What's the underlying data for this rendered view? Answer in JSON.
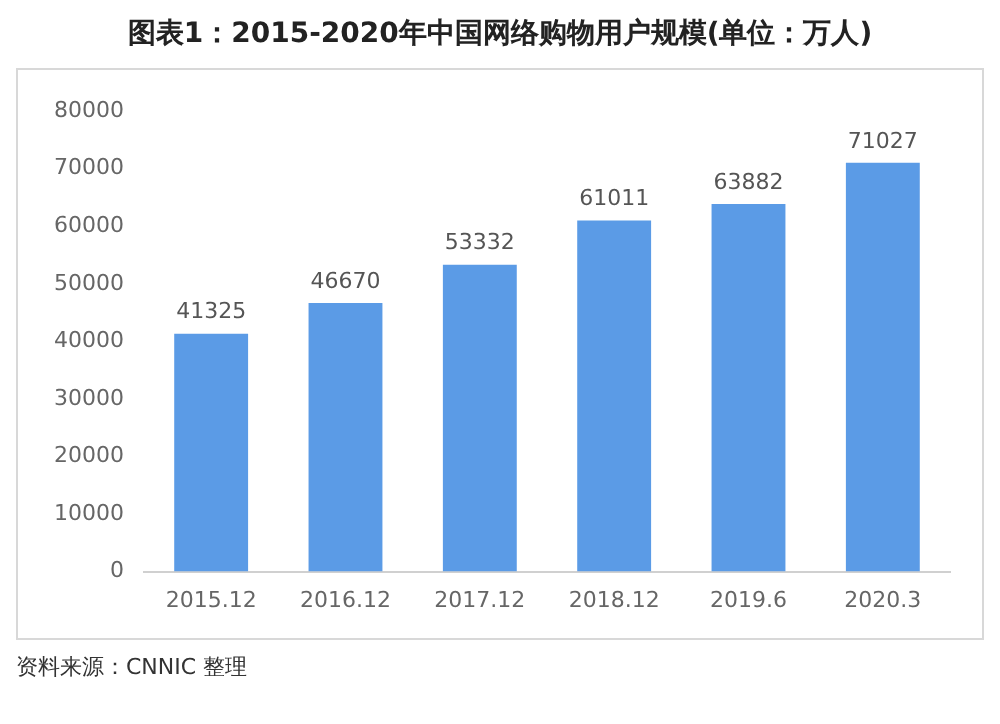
{
  "chart_data": {
    "type": "bar",
    "title": "图表1：2015-2020年中国网络购物用户规模(单位：万人)",
    "categories": [
      "2015.12",
      "2016.12",
      "2017.12",
      "2018.12",
      "2019.6",
      "2020.3"
    ],
    "values": [
      41325,
      46670,
      53332,
      61011,
      63882,
      71027
    ],
    "color": "#5b9be6",
    "ylim": [
      0,
      80000
    ],
    "yticks": [
      0,
      10000,
      20000,
      30000,
      40000,
      50000,
      60000,
      70000,
      80000
    ],
    "grid": false,
    "data_labels": true,
    "annotations": [
      "资料来源：CNNIC 整理"
    ]
  }
}
